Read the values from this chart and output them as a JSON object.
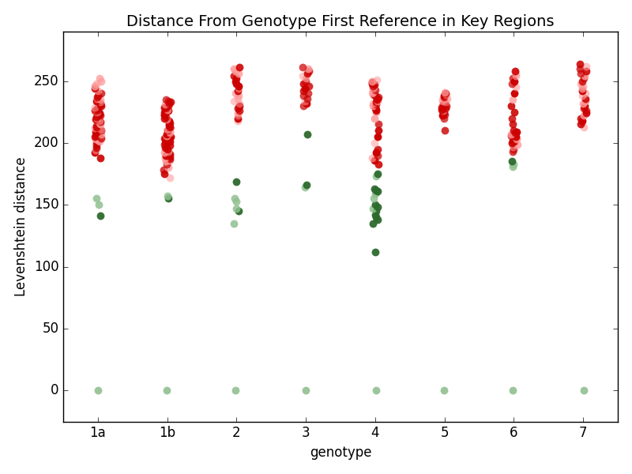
{
  "title": "Distance From Genotype First Reference in Key Regions",
  "xlabel": "genotype",
  "ylabel": "Levenshtein distance",
  "genotypes": [
    "1a",
    "1b",
    "2",
    "3",
    "4",
    "5",
    "6",
    "7"
  ],
  "seed": 42,
  "ylim": [
    -25,
    290
  ],
  "yticks": [
    0,
    50,
    100,
    150,
    200,
    250
  ],
  "figsize": [
    8.0,
    6.0
  ],
  "dpi": 100,
  "groups": {
    "1a": {
      "green_zero": [
        0
      ],
      "green_low": [
        141,
        150,
        155
      ],
      "red_high": [
        188,
        192,
        194,
        196,
        198,
        200,
        201,
        202,
        203,
        204,
        205,
        206,
        207,
        208,
        209,
        210,
        211,
        212,
        213,
        214,
        215,
        216,
        217,
        218,
        219,
        220,
        221,
        222,
        223,
        224,
        225,
        226,
        227,
        228,
        229,
        230,
        231,
        232,
        233,
        234,
        235,
        236,
        237,
        238,
        240,
        242,
        244,
        246,
        248,
        250,
        252
      ]
    },
    "1b": {
      "green_zero": [
        0
      ],
      "green_low": [
        155,
        157
      ],
      "red_high": [
        172,
        175,
        178,
        180,
        183,
        185,
        186,
        187,
        188,
        189,
        190,
        191,
        192,
        193,
        194,
        195,
        196,
        197,
        198,
        199,
        200,
        201,
        202,
        203,
        204,
        205,
        206,
        207,
        208,
        209,
        210,
        211,
        212,
        213,
        214,
        215,
        216,
        217,
        218,
        219,
        220,
        221,
        222,
        223,
        224,
        225,
        226,
        227,
        228,
        229,
        230,
        231,
        232,
        233,
        234,
        235
      ]
    },
    "2": {
      "green_zero": [
        0
      ],
      "green_low": [
        135,
        145,
        147,
        153,
        155,
        169
      ],
      "red_high": [
        218,
        220,
        222,
        224,
        226,
        228,
        230,
        232,
        234,
        236,
        238,
        240,
        242,
        244,
        246,
        248,
        250,
        252,
        254,
        256,
        258,
        260,
        261
      ]
    },
    "3": {
      "green_zero": [
        0
      ],
      "green_low": [
        164,
        166,
        207
      ],
      "red_high": [
        230,
        232,
        234,
        236,
        238,
        240,
        242,
        244,
        246,
        248,
        250,
        252,
        254,
        256,
        258,
        260,
        261
      ]
    },
    "4": {
      "green_zero": [
        0
      ],
      "green_low": [
        112,
        135,
        138,
        140,
        142,
        145,
        147,
        148,
        150,
        155,
        159,
        160,
        161,
        162,
        163,
        173,
        175
      ],
      "red_high": [
        183,
        186,
        188,
        190,
        192,
        195,
        200,
        205,
        210,
        215,
        220,
        225,
        226,
        227,
        228,
        229,
        230,
        231,
        232,
        233,
        234,
        235,
        236,
        237,
        238,
        239,
        240,
        241,
        242,
        243,
        244,
        245,
        246,
        247,
        248,
        249,
        250,
        251
      ]
    },
    "5": {
      "green_zero": [
        0
      ],
      "green_low": [],
      "red_high": [
        210,
        220,
        222,
        223,
        224,
        225,
        226,
        227,
        228,
        229,
        230,
        231,
        232,
        233,
        234,
        235,
        236,
        237,
        238,
        239,
        240,
        241
      ]
    },
    "6": {
      "green_zero": [
        0
      ],
      "green_low": [
        181,
        183,
        185
      ],
      "red_high": [
        193,
        195,
        197,
        199,
        200,
        201,
        202,
        203,
        204,
        205,
        206,
        207,
        208,
        209,
        210,
        215,
        220,
        225,
        230,
        235,
        240,
        245,
        248,
        250,
        252,
        254,
        256,
        258
      ]
    },
    "7": {
      "green_zero": [
        0
      ],
      "green_low": [],
      "red_high": [
        213,
        215,
        218,
        220,
        222,
        224,
        226,
        228,
        230,
        232,
        234,
        236,
        238,
        240,
        242,
        244,
        246,
        248,
        250,
        252,
        254,
        256,
        258,
        260,
        262,
        264
      ]
    }
  }
}
